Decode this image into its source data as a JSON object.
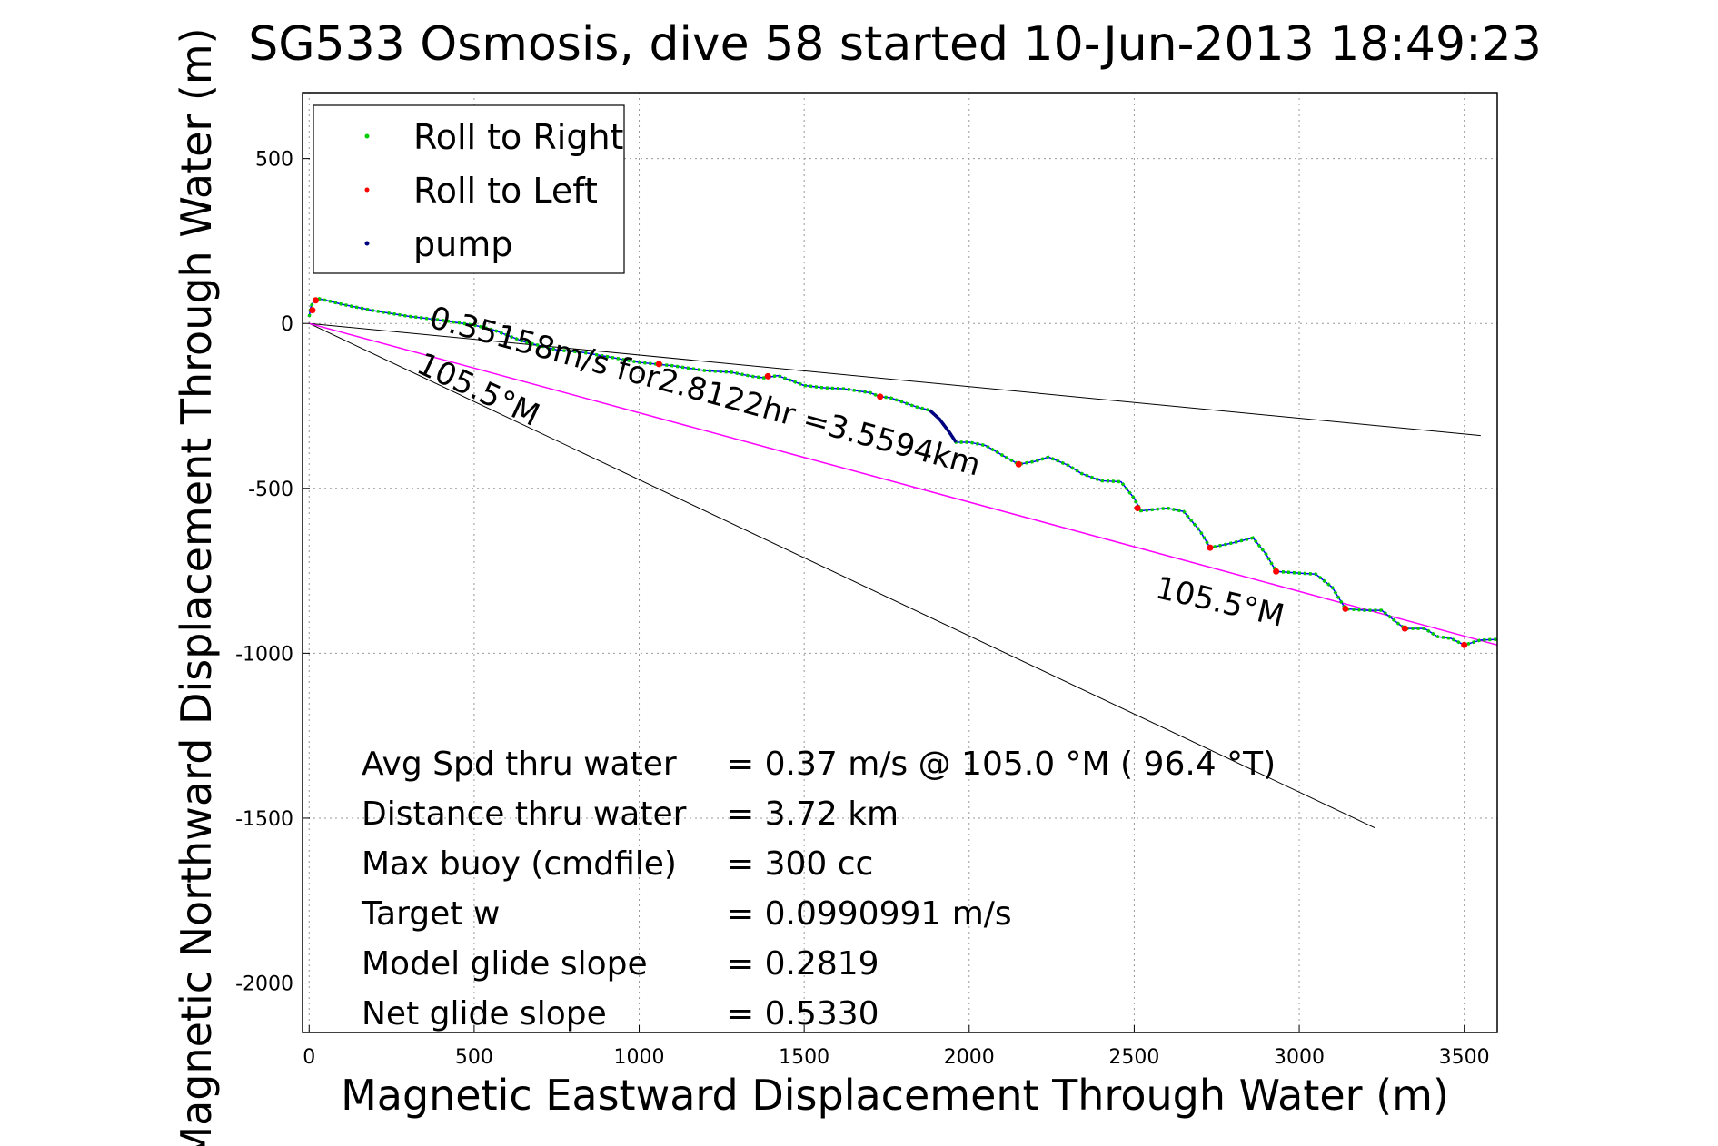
{
  "chart_data": {
    "type": "line",
    "title": "SG533 Osmosis, dive 58 started 10-Jun-2013 18:49:23",
    "xlabel": "Magnetic Eastward Displacement Through Water (m)",
    "ylabel": "Magnetic Northward Displacement Through Water (m)",
    "xlim": [
      -20,
      3600
    ],
    "ylim": [
      -2150,
      700
    ],
    "xticks": [
      0,
      500,
      1000,
      1500,
      2000,
      2500,
      3000,
      3500
    ],
    "yticks": [
      500,
      0,
      -500,
      -1000,
      -1500,
      -2000
    ],
    "grid": true,
    "legend": {
      "placement": "top-left",
      "entries": [
        {
          "label": "Roll to Right",
          "color": "#00cc00"
        },
        {
          "label": "Roll to Left",
          "color": "#ff0000"
        },
        {
          "label": "pump",
          "color": "#000080"
        }
      ]
    },
    "colors": {
      "track": "#0000ff",
      "roll_right": "#00cc00",
      "roll_left": "#ff0000",
      "pump": "#000080",
      "heading_line": "#ff00ff",
      "bounds": "#000000"
    },
    "track": [
      [
        0,
        20
      ],
      [
        5,
        50
      ],
      [
        15,
        70
      ],
      [
        30,
        75
      ],
      [
        60,
        68
      ],
      [
        100,
        58
      ],
      [
        200,
        38
      ],
      [
        300,
        22
      ],
      [
        400,
        10
      ],
      [
        500,
        -5
      ],
      [
        560,
        -20
      ],
      [
        650,
        -55
      ],
      [
        750,
        -80
      ],
      [
        830,
        -88
      ],
      [
        900,
        -100
      ],
      [
        1000,
        -118
      ],
      [
        1050,
        -123
      ],
      [
        1100,
        -128
      ],
      [
        1200,
        -143
      ],
      [
        1280,
        -148
      ],
      [
        1340,
        -160
      ],
      [
        1380,
        -165
      ],
      [
        1420,
        -158
      ],
      [
        1500,
        -188
      ],
      [
        1560,
        -195
      ],
      [
        1620,
        -198
      ],
      [
        1700,
        -210
      ],
      [
        1730,
        -222
      ],
      [
        1760,
        -225
      ],
      [
        1840,
        -253
      ],
      [
        1880,
        -263
      ],
      [
        1910,
        -290
      ],
      [
        1940,
        -330
      ],
      [
        1960,
        -360
      ],
      [
        2000,
        -360
      ],
      [
        2050,
        -370
      ],
      [
        2110,
        -405
      ],
      [
        2150,
        -427
      ],
      [
        2200,
        -418
      ],
      [
        2240,
        -405
      ],
      [
        2300,
        -430
      ],
      [
        2340,
        -455
      ],
      [
        2400,
        -477
      ],
      [
        2460,
        -480
      ],
      [
        2500,
        -530
      ],
      [
        2520,
        -568
      ],
      [
        2600,
        -560
      ],
      [
        2650,
        -570
      ],
      [
        2700,
        -630
      ],
      [
        2730,
        -680
      ],
      [
        2800,
        -665
      ],
      [
        2860,
        -650
      ],
      [
        2900,
        -700
      ],
      [
        2930,
        -752
      ],
      [
        3000,
        -757
      ],
      [
        3050,
        -760
      ],
      [
        3100,
        -800
      ],
      [
        3140,
        -865
      ],
      [
        3200,
        -870
      ],
      [
        3250,
        -870
      ],
      [
        3300,
        -910
      ],
      [
        3320,
        -925
      ],
      [
        3380,
        -925
      ],
      [
        3420,
        -950
      ],
      [
        3460,
        -955
      ],
      [
        3500,
        -975
      ],
      [
        3550,
        -960
      ],
      [
        3600,
        -958
      ]
    ],
    "roll_left_points": [
      [
        10,
        40
      ],
      [
        20,
        70
      ],
      [
        1060,
        -123
      ],
      [
        1390,
        -160
      ],
      [
        1730,
        -222
      ],
      [
        2150,
        -427
      ],
      [
        2510,
        -560
      ],
      [
        2730,
        -680
      ],
      [
        2930,
        -752
      ],
      [
        3140,
        -865
      ],
      [
        3320,
        -925
      ],
      [
        3500,
        -975
      ]
    ],
    "pump_segment": [
      [
        1880,
        -263
      ],
      [
        1910,
        -290
      ],
      [
        1940,
        -330
      ],
      [
        1960,
        -360
      ]
    ],
    "heading_line": [
      [
        0,
        0
      ],
      [
        3600,
        -975
      ]
    ],
    "bound_lines": [
      [
        [
          0,
          0
        ],
        [
          3550,
          -340
        ]
      ],
      [
        [
          0,
          0
        ],
        [
          3230,
          -1530
        ]
      ]
    ],
    "annotations": [
      {
        "text": "0.35158m/s for2.8122hr =3.5594km",
        "x": 360,
        "y": -10,
        "angle": 15.2
      },
      {
        "text": "105.5°M",
        "x": 320,
        "y": -145,
        "angle": 25
      },
      {
        "text": "105.5°M",
        "x": 2560,
        "y": -830,
        "angle": 13
      }
    ],
    "stats": [
      {
        "label": "Avg Spd thru water",
        "value": "=  0.37 m/s @ 105.0 °M ( 96.4 °T)"
      },
      {
        "label": "Distance thru water",
        "value": "=  3.72 km"
      },
      {
        "label": "Max buoy (cmdfile)",
        "value": "= 300 cc"
      },
      {
        "label": "Target w",
        "value": "= 0.0990991 m/s"
      },
      {
        "label": "Model glide slope",
        "value": "= 0.2819"
      },
      {
        "label": "Net glide slope",
        "value": "= 0.5330"
      }
    ]
  }
}
